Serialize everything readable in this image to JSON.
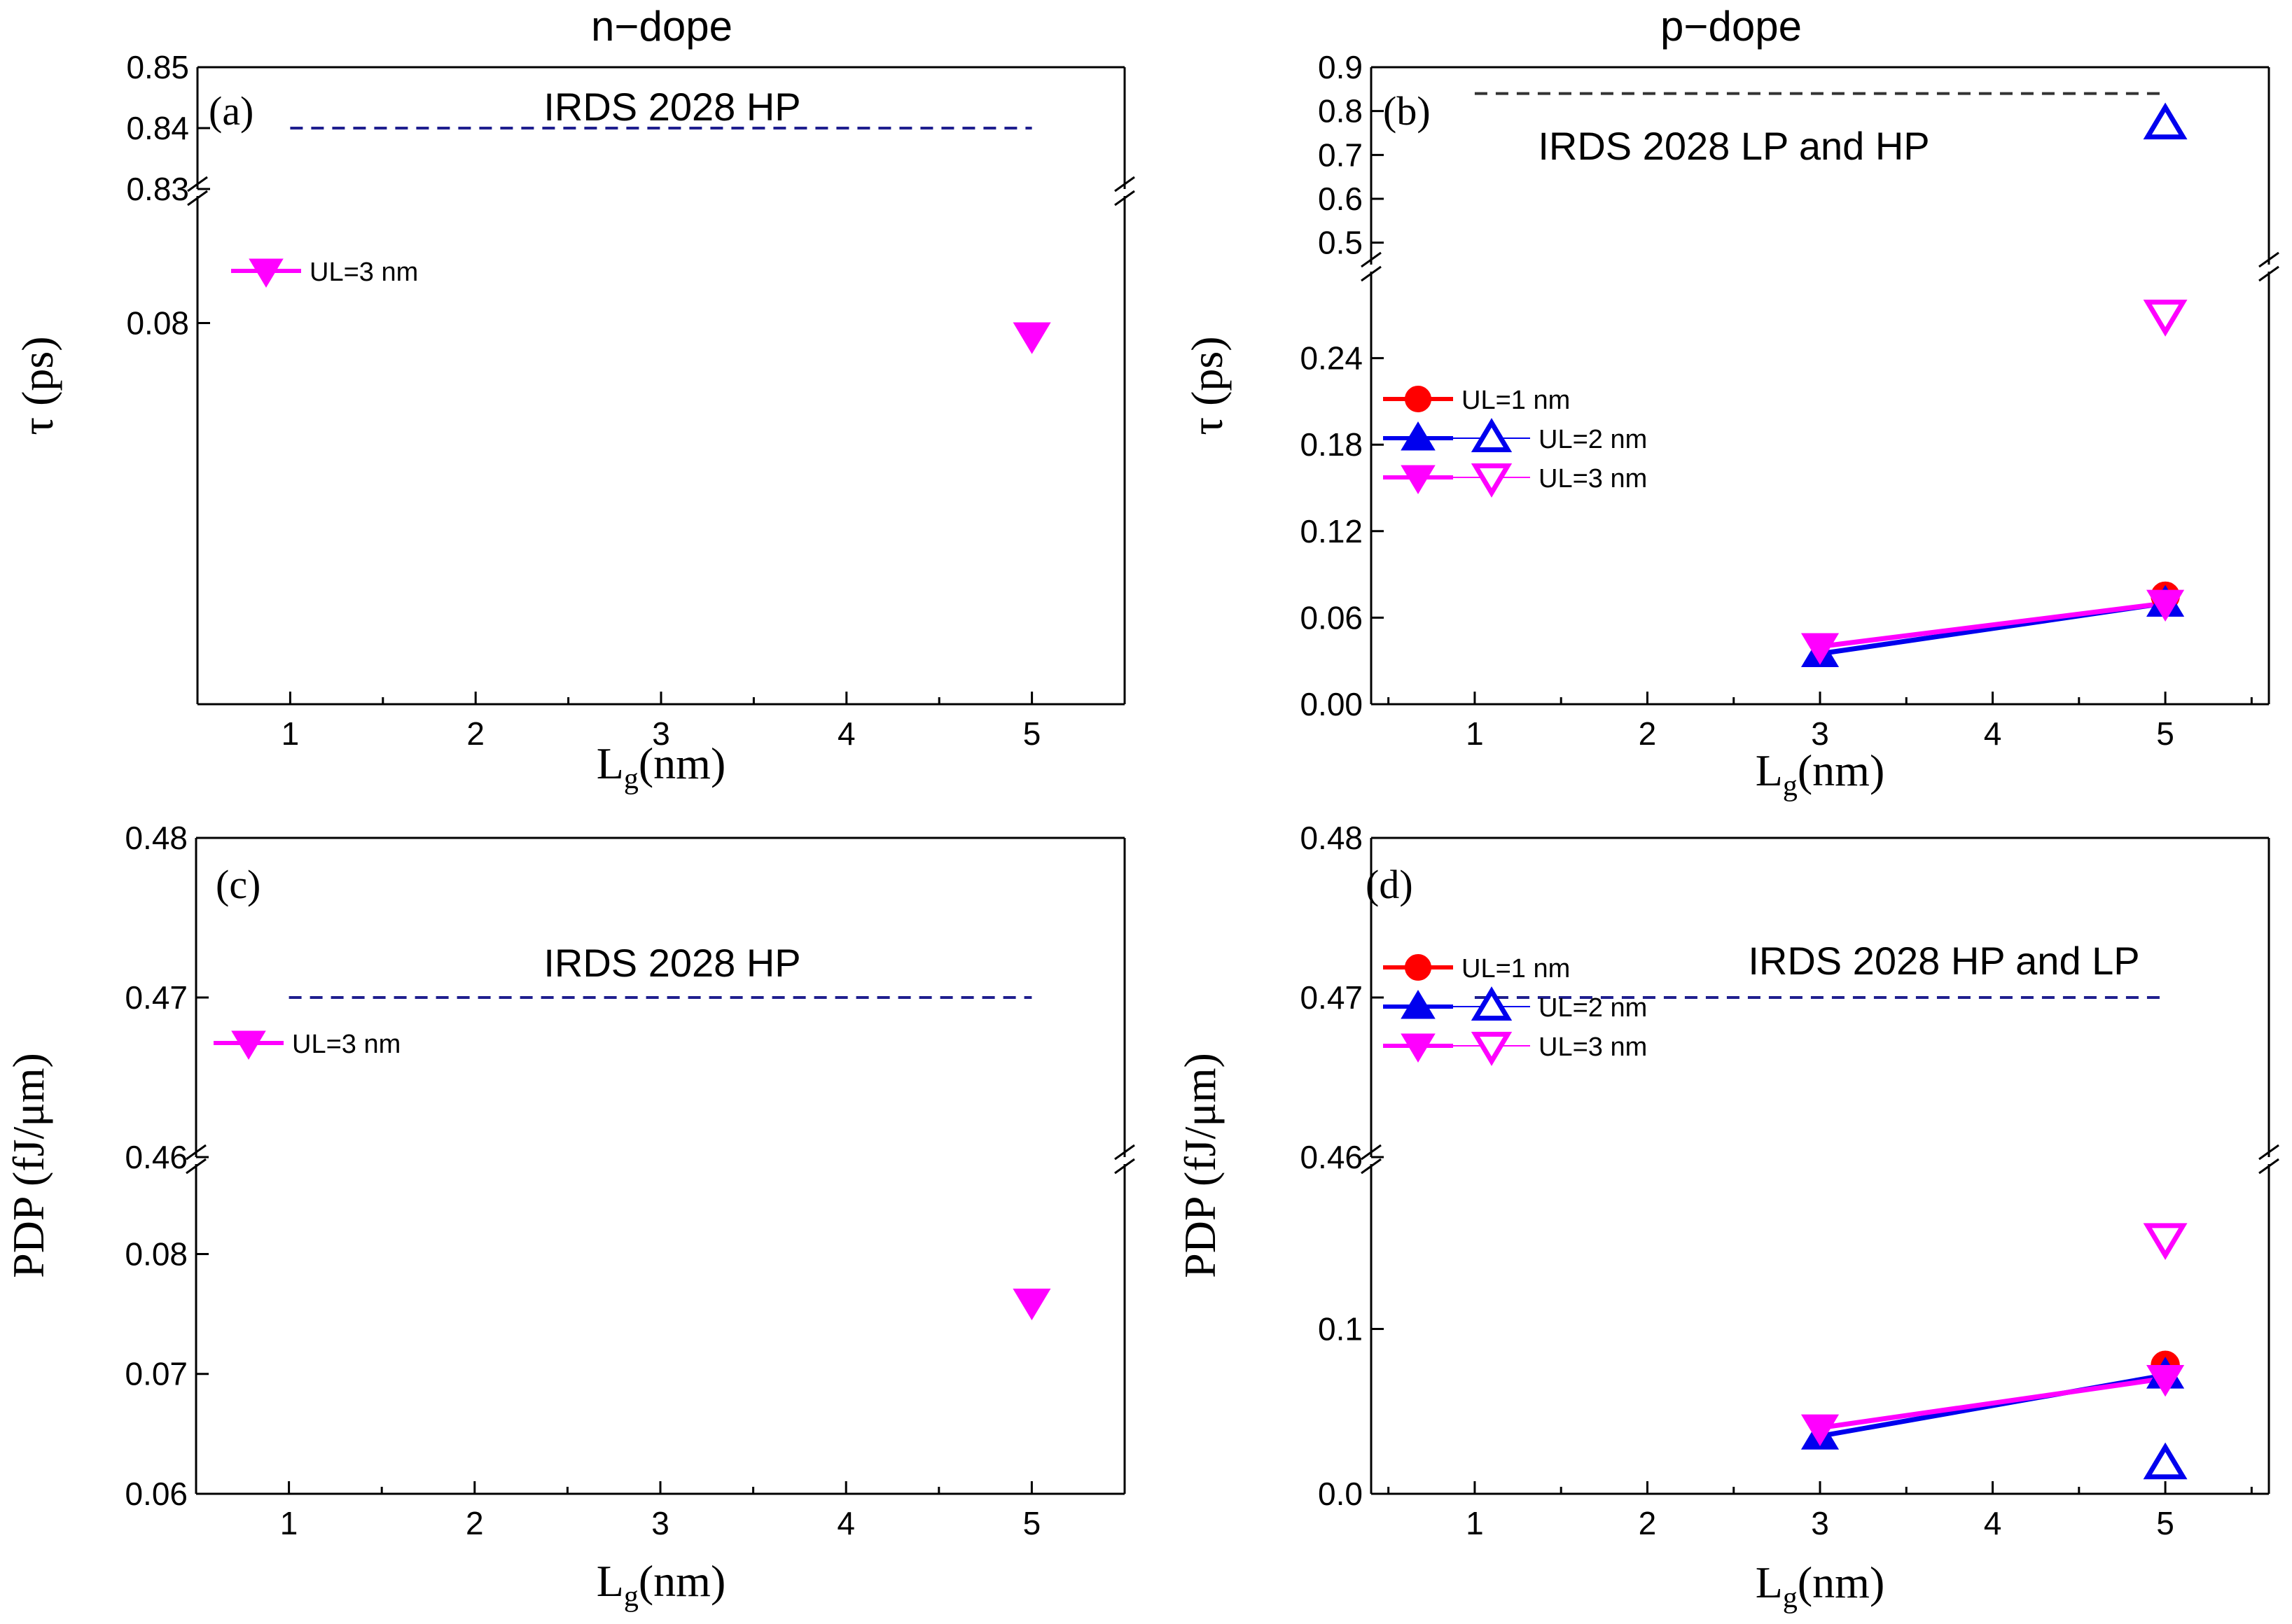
{
  "column_titles": {
    "n": "n−dope",
    "p": "p−dope"
  },
  "colors": {
    "ul1": "#ff0000",
    "ul2": "#0000ee",
    "ul3": "#ff00ff",
    "irds_navy": "#1f1f8f",
    "irds_black": "#333333",
    "axis": "#000000"
  },
  "chart_data": [
    {
      "id": "a",
      "type": "scatter",
      "panel_label": "(a)",
      "column": "n-dope",
      "xlabel": "L",
      "xlabel_sub": "g",
      "xlabel_unit": "(nm)",
      "ylabel": "τ (ps)",
      "xlim": [
        0.5,
        5.5
      ],
      "x_ticks": [
        "1",
        "2",
        "3",
        "4",
        "5"
      ],
      "y_broken": true,
      "upper": {
        "ylim": [
          0.83,
          0.85
        ],
        "ticks": [
          "0.83",
          "0.84",
          "0.85"
        ]
      },
      "lower": {
        "ylim": [
          0.05,
          0.09
        ],
        "ticks": [
          "0.08"
        ]
      },
      "reference_lines": [
        {
          "label": "IRDS 2028 HP",
          "y": 0.84,
          "segment": "upper",
          "x_range": [
            1.0,
            5.0
          ],
          "style": "navy"
        }
      ],
      "series": [
        {
          "name": "UL=3 nm",
          "marker": "tri-down",
          "color": "ul3",
          "filled": true,
          "points": [
            [
              5,
              0.079,
              "lower"
            ]
          ]
        }
      ],
      "legend": [
        {
          "label": "UL=3 nm",
          "entries": [
            {
              "marker": "tri-down",
              "color": "ul3",
              "filled": true
            }
          ]
        }
      ]
    },
    {
      "id": "b",
      "type": "line",
      "panel_label": "(b)",
      "column": "p-dope",
      "xlabel": "L",
      "xlabel_sub": "g",
      "xlabel_unit": "(nm)",
      "ylabel": "τ (ps)",
      "xlim": [
        0.4,
        5.6
      ],
      "x_ticks": [
        "1",
        "2",
        "3",
        "4",
        "5"
      ],
      "y_broken": true,
      "upper": {
        "ylim": [
          0.45,
          0.9
        ],
        "ticks": [
          "0.5",
          "0.6",
          "0.7",
          "0.8",
          "0.9"
        ]
      },
      "lower": {
        "ylim": [
          0.0,
          0.3
        ],
        "ticks": [
          "0.00",
          "0.06",
          "0.12",
          "0.18",
          "0.24"
        ]
      },
      "reference_lines": [
        {
          "label": "IRDS 2028 LP and HP",
          "y": 0.84,
          "segment": "upper",
          "x_range": [
            1.0,
            5.0
          ],
          "style": "black"
        }
      ],
      "series": [
        {
          "name": "UL=1 nm",
          "marker": "circle",
          "color": "ul1",
          "filled": true,
          "line": true,
          "points": [
            [
              5,
              0.075,
              "lower"
            ]
          ]
        },
        {
          "name": "UL=2 nm",
          "marker": "tri-up",
          "color": "ul2",
          "filled": true,
          "line": true,
          "points": [
            [
              3,
              0.035,
              "lower"
            ],
            [
              5,
              0.07,
              "lower"
            ]
          ]
        },
        {
          "name": "UL=3 nm",
          "marker": "tri-down",
          "color": "ul3",
          "filled": true,
          "line": true,
          "points": [
            [
              3,
              0.04,
              "lower"
            ],
            [
              5,
              0.07,
              "lower"
            ]
          ]
        },
        {
          "name": "UL=2 nm (open)",
          "marker": "tri-up",
          "color": "ul2",
          "filled": false,
          "line": false,
          "points": [
            [
              5,
              0.77,
              "upper"
            ]
          ]
        },
        {
          "name": "UL=3 nm (open)",
          "marker": "tri-down",
          "color": "ul3",
          "filled": false,
          "line": false,
          "points": [
            [
              5,
              0.27,
              "lower"
            ]
          ]
        }
      ],
      "legend": [
        {
          "label": "UL=1 nm",
          "entries": [
            {
              "marker": "circle",
              "color": "ul1",
              "filled": true
            }
          ]
        },
        {
          "label": "UL=2 nm",
          "entries": [
            {
              "marker": "tri-up",
              "color": "ul2",
              "filled": true
            },
            {
              "marker": "tri-up",
              "color": "ul2",
              "filled": false
            }
          ]
        },
        {
          "label": "UL=3 nm",
          "entries": [
            {
              "marker": "tri-down",
              "color": "ul3",
              "filled": true
            },
            {
              "marker": "tri-down",
              "color": "ul3",
              "filled": false
            }
          ]
        }
      ]
    },
    {
      "id": "c",
      "type": "scatter",
      "panel_label": "(c)",
      "column": "n-dope",
      "xlabel": "L",
      "xlabel_sub": "g",
      "xlabel_unit": "(nm)",
      "ylabel": "PDP (fJ/μm)",
      "xlim": [
        0.5,
        5.5
      ],
      "x_ticks": [
        "1",
        "2",
        "3",
        "4",
        "5"
      ],
      "y_broken": true,
      "upper": {
        "ylim": [
          0.46,
          0.48
        ],
        "ticks": [
          "0.46",
          "0.47",
          "0.48"
        ]
      },
      "lower": {
        "ylim": [
          0.06,
          0.0875
        ],
        "ticks": [
          "0.06",
          "0.07",
          "0.08"
        ]
      },
      "reference_lines": [
        {
          "label": "IRDS 2028 HP",
          "y": 0.47,
          "segment": "upper",
          "x_range": [
            1.0,
            5.0
          ],
          "style": "navy"
        }
      ],
      "series": [
        {
          "name": "UL=3 nm",
          "marker": "tri-down",
          "color": "ul3",
          "filled": true,
          "points": [
            [
              5,
              0.076,
              "lower"
            ]
          ]
        }
      ],
      "legend": [
        {
          "label": "UL=3 nm",
          "entries": [
            {
              "marker": "tri-down",
              "color": "ul3",
              "filled": true
            }
          ]
        }
      ]
    },
    {
      "id": "d",
      "type": "line",
      "panel_label": "(d)",
      "column": "p-dope",
      "xlabel": "L",
      "xlabel_sub": "g",
      "xlabel_unit": "(nm)",
      "ylabel": "PDP (fJ/μm)",
      "xlim": [
        0.4,
        5.6
      ],
      "x_ticks": [
        "1",
        "2",
        "3",
        "4",
        "5"
      ],
      "y_broken": true,
      "upper": {
        "ylim": [
          0.46,
          0.48
        ],
        "ticks": [
          "0.46",
          "0.47",
          "0.48"
        ]
      },
      "lower": {
        "ylim": [
          0.0,
          0.2
        ],
        "ticks": [
          "0.0",
          "0.1"
        ]
      },
      "reference_lines": [
        {
          "label": "IRDS 2028 HP and LP",
          "y": 0.47,
          "segment": "upper",
          "x_range": [
            1.0,
            5.0
          ],
          "style": "navy"
        }
      ],
      "series": [
        {
          "name": "UL=1 nm",
          "marker": "circle",
          "color": "ul1",
          "filled": true,
          "line": true,
          "points": [
            [
              5,
              0.078,
              "lower"
            ]
          ]
        },
        {
          "name": "UL=2 nm",
          "marker": "tri-up",
          "color": "ul2",
          "filled": true,
          "line": true,
          "points": [
            [
              3,
              0.035,
              "lower"
            ],
            [
              5,
              0.072,
              "lower"
            ]
          ]
        },
        {
          "name": "UL=3 nm",
          "marker": "tri-down",
          "color": "ul3",
          "filled": true,
          "line": true,
          "points": [
            [
              3,
              0.04,
              "lower"
            ],
            [
              5,
              0.07,
              "lower"
            ]
          ]
        },
        {
          "name": "UL=2 nm (open)",
          "marker": "tri-up",
          "color": "ul2",
          "filled": false,
          "line": false,
          "points": [
            [
              5,
              0.018,
              "lower"
            ]
          ]
        },
        {
          "name": "UL=3 nm (open)",
          "marker": "tri-down",
          "color": "ul3",
          "filled": false,
          "line": false,
          "points": [
            [
              5,
              0.155,
              "lower"
            ]
          ]
        }
      ],
      "legend": [
        {
          "label": "UL=1 nm",
          "entries": [
            {
              "marker": "circle",
              "color": "ul1",
              "filled": true
            }
          ]
        },
        {
          "label": "UL=2 nm",
          "entries": [
            {
              "marker": "tri-up",
              "color": "ul2",
              "filled": true
            },
            {
              "marker": "tri-up",
              "color": "ul2",
              "filled": false
            }
          ]
        },
        {
          "label": "UL=3 nm",
          "entries": [
            {
              "marker": "tri-down",
              "color": "ul3",
              "filled": true
            },
            {
              "marker": "tri-down",
              "color": "ul3",
              "filled": false
            }
          ]
        }
      ]
    }
  ]
}
